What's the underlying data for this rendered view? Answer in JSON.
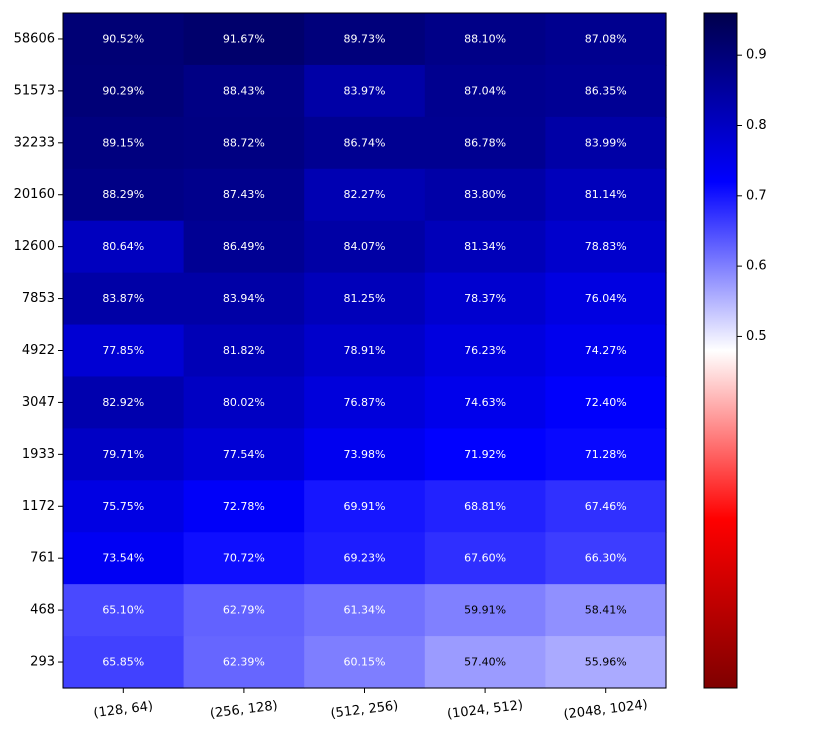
{
  "chart_data": {
    "type": "heatmap",
    "title": "",
    "xlabel": "",
    "ylabel": "",
    "x_categories": [
      "(128, 64)",
      "(256, 128)",
      "(512, 256)",
      "(1024, 512)",
      "(2048, 1024)"
    ],
    "y_categories": [
      "58606",
      "51573",
      "32233",
      "20160",
      "12600",
      "7853",
      "4922",
      "3047",
      "1933",
      "1172",
      "761",
      "468",
      "293"
    ],
    "values": [
      [
        0.9052,
        0.9167,
        0.8973,
        0.881,
        0.8708
      ],
      [
        0.9029,
        0.8843,
        0.8397,
        0.8704,
        0.8635
      ],
      [
        0.8915,
        0.8872,
        0.8674,
        0.8678,
        0.8399
      ],
      [
        0.8829,
        0.8743,
        0.8227,
        0.838,
        0.8114
      ],
      [
        0.8064,
        0.8649,
        0.8407,
        0.8134,
        0.7883
      ],
      [
        0.8387,
        0.8394,
        0.8125,
        0.7837,
        0.7604
      ],
      [
        0.7785,
        0.8182,
        0.7891,
        0.7623,
        0.7427
      ],
      [
        0.8292,
        0.8002,
        0.7687,
        0.7463,
        0.724
      ],
      [
        0.7971,
        0.7754,
        0.7398,
        0.7192,
        0.7128
      ],
      [
        0.7575,
        0.7278,
        0.6991,
        0.6881,
        0.6746
      ],
      [
        0.7354,
        0.7072,
        0.6923,
        0.676,
        0.663
      ],
      [
        0.651,
        0.6279,
        0.6134,
        0.5991,
        0.5841
      ],
      [
        0.6585,
        0.6239,
        0.6015,
        0.574,
        0.5596
      ]
    ],
    "cell_labels": [
      [
        "90.52%",
        "91.67%",
        "89.73%",
        "88.10%",
        "87.08%"
      ],
      [
        "90.29%",
        "88.43%",
        "83.97%",
        "87.04%",
        "86.35%"
      ],
      [
        "89.15%",
        "88.72%",
        "86.74%",
        "86.78%",
        "83.99%"
      ],
      [
        "88.29%",
        "87.43%",
        "82.27%",
        "83.80%",
        "81.14%"
      ],
      [
        "80.64%",
        "86.49%",
        "84.07%",
        "81.34%",
        "78.83%"
      ],
      [
        "83.87%",
        "83.94%",
        "81.25%",
        "78.37%",
        "76.04%"
      ],
      [
        "77.85%",
        "81.82%",
        "78.91%",
        "76.23%",
        "74.27%"
      ],
      [
        "82.92%",
        "80.02%",
        "76.87%",
        "74.63%",
        "72.40%"
      ],
      [
        "79.71%",
        "77.54%",
        "73.98%",
        "71.92%",
        "71.28%"
      ],
      [
        "75.75%",
        "72.78%",
        "69.91%",
        "68.81%",
        "67.46%"
      ],
      [
        "73.54%",
        "70.72%",
        "69.23%",
        "67.60%",
        "66.30%"
      ],
      [
        "65.10%",
        "62.79%",
        "61.34%",
        "59.91%",
        "58.41%"
      ],
      [
        "65.85%",
        "62.39%",
        "60.15%",
        "57.40%",
        "55.96%"
      ]
    ],
    "colorbar": {
      "colormap": "seismic_r",
      "range": [
        0.0,
        0.96
      ],
      "tick_values": [
        0.5,
        0.6,
        0.7,
        0.8,
        0.9
      ],
      "tick_labels": [
        "0.5",
        "0.6",
        "0.7",
        "0.8",
        "0.9"
      ]
    },
    "colors": {
      "dark_red": "#7f0000",
      "red": "#ff0000",
      "white": "#ffffff",
      "blue": "#0000ff",
      "dark_blue": "#00004c"
    },
    "grid": false,
    "legend": "colorbar-right"
  }
}
